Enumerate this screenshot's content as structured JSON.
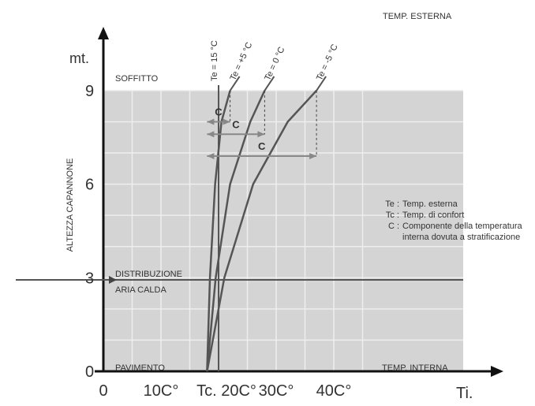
{
  "chart_data": {
    "type": "line",
    "title": "",
    "corner_label": "TEMP. ESTERNA",
    "ylabel": "ALTEZZA CAPANNONE",
    "y_unit": "mt.",
    "x_unit": "Ti.",
    "x_ticks": [
      "0",
      "10C°",
      "Tc. 20C°",
      "30C°",
      "40C°"
    ],
    "y_ticks": [
      "0",
      "3",
      "6",
      "9"
    ],
    "xlim": [
      0,
      45
    ],
    "ylim": [
      0,
      9
    ],
    "grid": true,
    "zone_labels": {
      "top": "SOFFITTO",
      "bottom": "PAVIMENTO",
      "mid_1": "DISTRIBUZIONE",
      "mid_2": "ARIA CALDA",
      "x_right": "TEMP. INTERNA"
    },
    "comfort_line_label": "Te = 15 °C",
    "reference_height": 3,
    "series": [
      {
        "name": "Te = +5 °C",
        "x": [
          18,
          18.5,
          19.4,
          20.5,
          22
        ],
        "y": [
          0,
          3,
          6,
          8,
          9
        ]
      },
      {
        "name": "Te = 0 °C",
        "x": [
          18,
          19.5,
          22,
          25.5,
          28
        ],
        "y": [
          0,
          3,
          6,
          8,
          9
        ]
      },
      {
        "name": "Te = -5 °C",
        "x": [
          18,
          21,
          26,
          32,
          37
        ],
        "y": [
          0,
          3,
          6,
          8,
          9
        ]
      }
    ],
    "stratification_arrows": [
      {
        "label": "C",
        "from": 18,
        "to": 22,
        "y": 8
      },
      {
        "label": "C",
        "from": 18,
        "to": 28,
        "y": 7.6
      },
      {
        "label": "C",
        "from": 18,
        "to": 37,
        "y": 6.9
      }
    ],
    "legend": [
      {
        "key": "Te :",
        "text": "Temp. esterna"
      },
      {
        "key": "Tc :",
        "text": "Temp. di confort"
      },
      {
        "key": "C :",
        "text": "Componente della temperatura interna dovuta  a stratificazione"
      }
    ],
    "colors": {
      "grid_bg": "#d4d4d4",
      "grid_line": "#eeeeee",
      "curve": "#555555",
      "axis": "#111111"
    }
  }
}
